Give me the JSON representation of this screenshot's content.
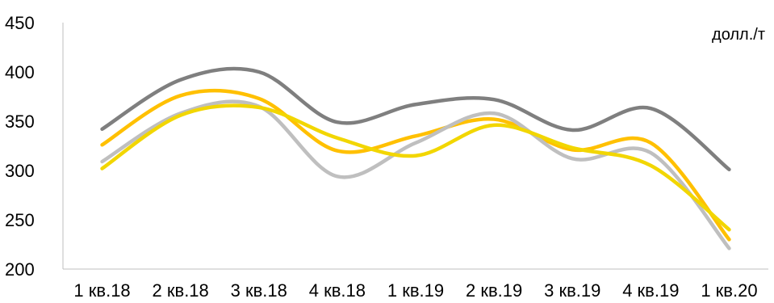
{
  "chart_data": {
    "type": "line",
    "title": "",
    "xlabel": "",
    "ylabel": "",
    "unit_label": "долл./т",
    "ylim": [
      200,
      450
    ],
    "yticks": [
      200,
      250,
      300,
      350,
      400,
      450
    ],
    "categories": [
      "1 кв.18",
      "2 кв.18",
      "3 кв.18",
      "4 кв.18",
      "1 кв.19",
      "2 кв.19",
      "3 кв.19",
      "4 кв.19",
      "1 кв.20"
    ],
    "grid": false,
    "legend": "none",
    "series": [
      {
        "color": "#7f7f7f",
        "values": [
          342,
          392,
          400,
          349,
          367,
          372,
          341,
          363,
          301
        ]
      },
      {
        "color": "#ffc000",
        "values": [
          326,
          376,
          373,
          320,
          335,
          352,
          321,
          328,
          230
        ]
      },
      {
        "color": "#bfbfbf",
        "values": [
          309,
          358,
          365,
          294,
          328,
          358,
          312,
          318,
          221
        ]
      },
      {
        "color": "#f2d600",
        "values": [
          302,
          356,
          364,
          333,
          315,
          346,
          323,
          305,
          240
        ]
      }
    ]
  }
}
